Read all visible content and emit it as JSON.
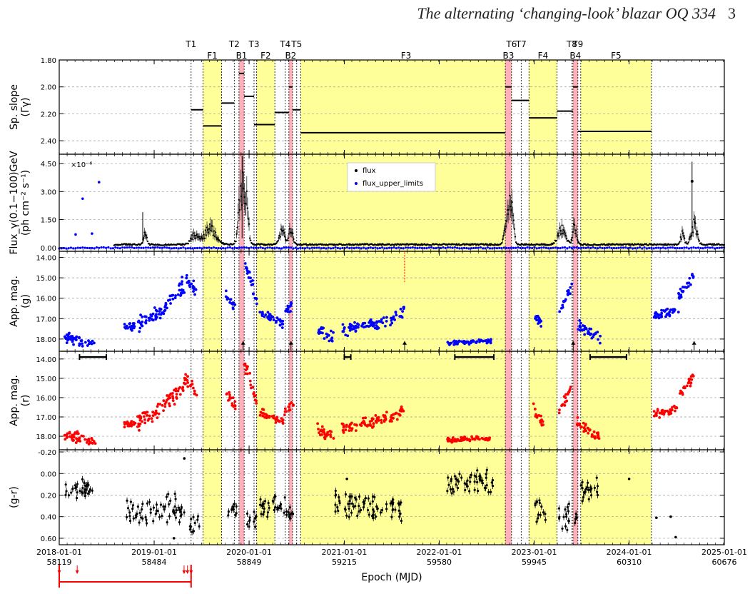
{
  "header": {
    "title": "The alternating ‘changing-look’ blazar OQ 334",
    "page_number": "3"
  },
  "chart_data": {
    "type": "scatter",
    "xlabel": "Epoch (MJD)",
    "x_ticks": [
      {
        "date": "2018-01-01",
        "mjd": "58119"
      },
      {
        "date": "2019-01-01",
        "mjd": "58484"
      },
      {
        "date": "2020-01-01",
        "mjd": "58849"
      },
      {
        "date": "2021-01-01",
        "mjd": "59215"
      },
      {
        "date": "2022-01-01",
        "mjd": "59580"
      },
      {
        "date": "2023-01-01",
        "mjd": "59945"
      },
      {
        "date": "2024-01-01",
        "mjd": "60310"
      },
      {
        "date": "2025-01-01",
        "mjd": "60676"
      }
    ],
    "xlim": [
      58119,
      60676
    ],
    "colors": {
      "flux": "#000000",
      "upper_limits": "#0000ff",
      "g_band": "#0000ff",
      "r_band": "#ff0000",
      "flare_region": "#ffff99",
      "burst_region": "#ffb0b8"
    },
    "transitions": [
      {
        "label": "T1",
        "mjd": 58626
      },
      {
        "label": "T2",
        "mjd": 58792
      },
      {
        "label": "T3",
        "mjd": 58868
      },
      {
        "label": "T4",
        "mjd": 58988
      },
      {
        "label": "T5",
        "mjd": 59032
      },
      {
        "label": "T6",
        "mjd": 59858
      },
      {
        "label": "T7",
        "mjd": 59895
      },
      {
        "label": "T8",
        "mjd": 60090
      },
      {
        "label": "T9",
        "mjd": 60113
      }
    ],
    "flares": [
      {
        "label": "F1",
        "start": 58672,
        "end": 58743
      },
      {
        "label": "F2",
        "start": 58878,
        "end": 58948
      },
      {
        "label": "F3",
        "start": 59047,
        "end": 59858
      },
      {
        "label": "F4",
        "start": 59925,
        "end": 60033
      },
      {
        "label": "F5",
        "start": 60124,
        "end": 60396
      }
    ],
    "bursts": [
      {
        "label": "B1",
        "start": 58810,
        "end": 58830
      },
      {
        "label": "B2",
        "start": 59002,
        "end": 59016
      },
      {
        "label": "B3",
        "start": 59834,
        "end": 59858
      },
      {
        "label": "B4",
        "start": 60094,
        "end": 60113
      }
    ],
    "panels": {
      "slope": {
        "ylabel": "Sp. slope",
        "ylabel2": "(Γγ)",
        "ylim": [
          1.8,
          2.5
        ],
        "ticks": [
          "1.80",
          "2.00",
          "2.20",
          "2.40"
        ],
        "segments": [
          {
            "x0": 58626,
            "x1": 58672,
            "y": 2.17
          },
          {
            "x0": 58672,
            "x1": 58743,
            "y": 2.29
          },
          {
            "x0": 58743,
            "x1": 58792,
            "y": 2.12
          },
          {
            "x0": 58810,
            "x1": 58830,
            "y": 1.9
          },
          {
            "x0": 58830,
            "x1": 58868,
            "y": 2.07
          },
          {
            "x0": 58868,
            "x1": 58948,
            "y": 2.28
          },
          {
            "x0": 58948,
            "x1": 59002,
            "y": 2.19
          },
          {
            "x0": 59002,
            "x1": 59016,
            "y": 2.0
          },
          {
            "x0": 59016,
            "x1": 59047,
            "y": 2.17
          },
          {
            "x0": 59047,
            "x1": 59834,
            "y": 2.34
          },
          {
            "x0": 59834,
            "x1": 59858,
            "y": 2.0
          },
          {
            "x0": 59858,
            "x1": 59925,
            "y": 2.1
          },
          {
            "x0": 59925,
            "x1": 60033,
            "y": 2.23
          },
          {
            "x0": 60033,
            "x1": 60094,
            "y": 2.18
          },
          {
            "x0": 60094,
            "x1": 60113,
            "y": 2.0
          },
          {
            "x0": 60113,
            "x1": 60396,
            "y": 2.33
          }
        ]
      },
      "flux": {
        "ylabel": "Flux_γ(0.1−100)GeV",
        "ylabel2": "(ph cm⁻² s⁻¹)",
        "scale_label": "×10⁻⁶",
        "ylim": [
          -0.2,
          5.0
        ],
        "ticks": [
          "0.00",
          "1.50",
          "3.00",
          "4.50"
        ],
        "legend": [
          "flux",
          "flux_upper_limits"
        ],
        "upper_limit_outliers": [
          [
            58209,
            2.62
          ],
          [
            58272,
            3.5
          ],
          [
            58182,
            0.7
          ],
          [
            58245,
            0.75
          ]
        ]
      },
      "g": {
        "ylabel": "App. mag.",
        "ylabel2": "(g)",
        "ylim": [
          13.7,
          18.6
        ],
        "ticks": [
          "14.00",
          "15.00",
          "16.00",
          "17.00",
          "18.00"
        ]
      },
      "r": {
        "ylabel": "App. mag.",
        "ylabel2": "(r)",
        "ylim": [
          13.6,
          18.7
        ],
        "ticks": [
          "14.00",
          "15.00",
          "16.00",
          "17.00",
          "18.00"
        ],
        "bars": [
          [
            58197,
            58300
          ],
          [
            59215,
            59240
          ],
          [
            59640,
            59790
          ],
          [
            60160,
            60300
          ]
        ]
      },
      "gr": {
        "ylabel": "(g-r)",
        "ylim": [
          -0.22,
          0.66
        ],
        "ticks": [
          "-0.20",
          "0.00",
          "0.20",
          "0.40",
          "0.60"
        ]
      }
    },
    "bottom_bar": {
      "x0": 58119,
      "x1": 58626,
      "arrows": [
        58119,
        58188,
        58599,
        58612,
        58626
      ]
    }
  }
}
